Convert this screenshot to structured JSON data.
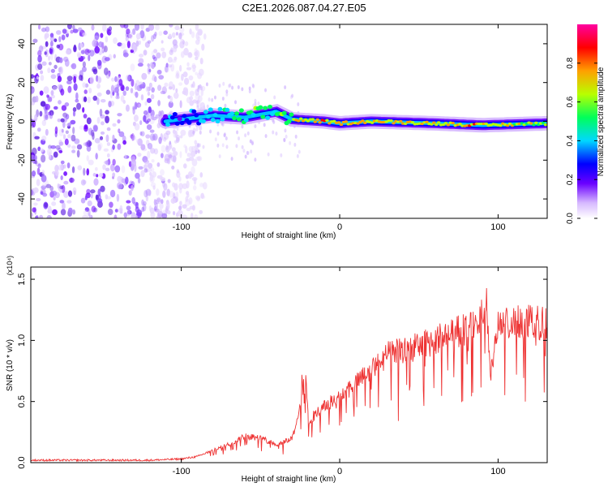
{
  "figure_title": "C2E1.2026.087.04.27.E05",
  "chart_data": [
    {
      "type": "heatmap",
      "title": "C2E1.2026.087.04.27.E05",
      "xlabel": "Height of straight line (km)",
      "ylabel": "Frequency (Hz)",
      "xlim": [
        -195,
        131
      ],
      "ylim": [
        -50,
        50
      ],
      "x_ticks": [
        -100,
        0,
        100
      ],
      "x_tick_labels": [
        "-100",
        "0",
        "100"
      ],
      "y_ticks": [
        -40,
        -20,
        0,
        20,
        40
      ],
      "y_tick_labels": [
        "-40",
        "-20",
        "0",
        "20",
        "40"
      ],
      "colorbar": {
        "label": "Normalized spectral amplitude",
        "range": [
          0,
          1
        ],
        "ticks": [
          0.0,
          0.2,
          0.4,
          0.6,
          0.8
        ],
        "tick_labels": [
          "0.0",
          "0.2",
          "0.4",
          "0.6",
          "0.8"
        ],
        "colors": [
          "#ffffff",
          "#6a00ff",
          "#0000ff",
          "#00d8ff",
          "#00ff5a",
          "#d8ff00",
          "#ffa000",
          "#ff0000",
          "#ff00a0"
        ]
      },
      "ridge": [
        {
          "x": -110,
          "freq": 0,
          "amp": 0.3
        },
        {
          "x": -80,
          "freq": 3,
          "amp": 0.45
        },
        {
          "x": -60,
          "freq": 2,
          "amp": 0.55
        },
        {
          "x": -40,
          "freq": 5,
          "amp": 0.55
        },
        {
          "x": -30,
          "freq": 1,
          "amp": 0.7
        },
        {
          "x": -10,
          "freq": 0,
          "amp": 0.85
        },
        {
          "x": 0,
          "freq": -1,
          "amp": 0.8
        },
        {
          "x": 20,
          "freq": 0,
          "amp": 0.75
        },
        {
          "x": 60,
          "freq": -1,
          "amp": 0.75
        },
        {
          "x": 90,
          "freq": -2,
          "amp": 0.8
        },
        {
          "x": 131,
          "freq": -1,
          "amp": 0.65
        }
      ],
      "noise_region_x": [
        -195,
        -95
      ]
    },
    {
      "type": "line",
      "xlabel": "Height of straight line (km)",
      "ylabel": "SNR (10 * v/v)",
      "y_multiplier_label": "(x10⁴)",
      "xlim": [
        -195,
        131
      ],
      "ylim": [
        0,
        1.6
      ],
      "x_ticks": [
        -100,
        0,
        100
      ],
      "x_tick_labels": [
        "-100",
        "0",
        "100"
      ],
      "y_ticks": [
        0.0,
        0.5,
        1.0,
        1.5
      ],
      "y_tick_labels": [
        "0.0",
        "0.5",
        "1.0",
        "1.5"
      ],
      "series": [
        {
          "name": "SNR",
          "color": "#ee3333",
          "x": [
            -195,
            -120,
            -100,
            -90,
            -80,
            -70,
            -60,
            -50,
            -40,
            -30,
            -25,
            -20,
            -10,
            0,
            10,
            20,
            30,
            40,
            50,
            60,
            70,
            80,
            88,
            92,
            95,
            100,
            110,
            120,
            131
          ],
          "y": [
            0.02,
            0.02,
            0.03,
            0.05,
            0.1,
            0.15,
            0.22,
            0.2,
            0.15,
            0.2,
            0.45,
            0.35,
            0.45,
            0.55,
            0.65,
            0.75,
            0.88,
            0.92,
            0.95,
            1.0,
            1.05,
            1.1,
            1.15,
            1.25,
            0.7,
            1.1,
            1.15,
            1.15,
            1.14
          ]
        }
      ]
    }
  ]
}
